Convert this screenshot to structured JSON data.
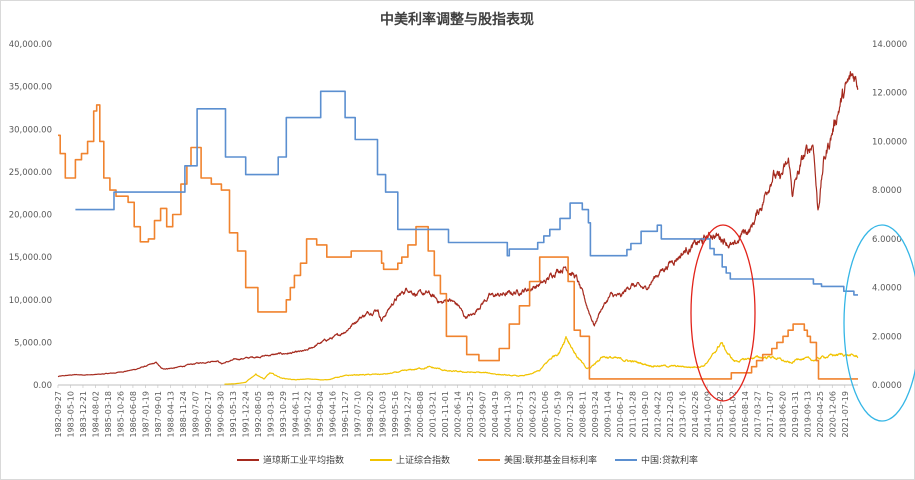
{
  "chart_data": {
    "type": "line",
    "title": "中美利率调整与股指表现",
    "y_left": {
      "min": 0,
      "max": 40000,
      "step": 5000,
      "ticks": [
        "0.00",
        "5,000.00",
        "10,000.00",
        "15,000.00",
        "20,000.00",
        "25,000.00",
        "30,000.00",
        "35,000.00",
        "40,000.00"
      ]
    },
    "y_right": {
      "min": 0,
      "max": 14,
      "step": 2,
      "ticks": [
        "0.0000",
        "2.0000",
        "4.0000",
        "6.0000",
        "8.0000",
        "10.0000",
        "12.0000",
        "14.0000"
      ]
    },
    "x_range": [
      1982.74,
      2022.2
    ],
    "x_ticks": [
      "1982-09-27",
      "1983-05-10",
      "1983-12-21",
      "1984-08-02",
      "1985-03-18",
      "1985-10-26",
      "1986-06-08",
      "1987-01-19",
      "1987-09-01",
      "1988-04-13",
      "1988-11-24",
      "1989-07-07",
      "1990-02-17",
      "1990-09-30",
      "1991-05-13",
      "1991-12-24",
      "1992-08-05",
      "1993-03-18",
      "1993-10-29",
      "1994-06-11",
      "1995-01-22",
      "1995-09-04",
      "1996-04-16",
      "1996-11-27",
      "1997-07-10",
      "1998-02-20",
      "1998-10-03",
      "1999-05-16",
      "1999-12-27",
      "2000-08-08",
      "2001-03-21",
      "2001-11-01",
      "2002-06-14",
      "2003-01-25",
      "2003-09-07",
      "2004-04-19",
      "2004-11-30",
      "2005-07-13",
      "2006-02-23",
      "2006-10-06",
      "2007-05-19",
      "2007-12-30",
      "2008-08-11",
      "2009-03-24",
      "2009-11-04",
      "2010-06-17",
      "2011-01-28",
      "2011-09-10",
      "2012-04-22",
      "2012-12-03",
      "2013-07-16",
      "2014-02-26",
      "2014-10-09",
      "2015-05-22",
      "2016-01-02",
      "2016-08-14",
      "2017-03-27",
      "2017-11-07",
      "2018-06-20",
      "2019-01-31",
      "2019-09-13",
      "2020-04-25",
      "2020-12-06",
      "2021-07-19"
    ],
    "series": [
      {
        "name": "道琼斯工业平均指数",
        "axis": "left",
        "color": "#a52a1e",
        "noise": 0.018,
        "x": [
          1982.74,
          1983.5,
          1984.5,
          1985.5,
          1986.5,
          1987.6,
          1987.85,
          1988.5,
          1989.5,
          1990.6,
          1990.8,
          1991.5,
          1992.5,
          1993.5,
          1994.5,
          1995.0,
          1995.5,
          1996.0,
          1996.5,
          1997.0,
          1997.6,
          1998.5,
          1998.7,
          1999.3,
          2000.0,
          2000.5,
          2001.0,
          2001.7,
          2002.0,
          2002.5,
          2002.8,
          2003.2,
          2003.6,
          2004.0,
          2005.0,
          2006.0,
          2006.8,
          2007.3,
          2007.8,
          2008.3,
          2008.9,
          2009.2,
          2009.5,
          2010.0,
          2010.5,
          2011.0,
          2011.7,
          2012.3,
          2013.0,
          2013.8,
          2014.5,
          2015.0,
          2015.6,
          2016.1,
          2016.5,
          2016.9,
          2017.5,
          2018.0,
          2018.3,
          2018.8,
          2018.95,
          2019.5,
          2020.0,
          2020.22,
          2020.5,
          2020.9,
          2021.3,
          2021.8,
          2022.0,
          2022.2
        ],
        "y": [
          1000,
          1200,
          1200,
          1400,
          1800,
          2600,
          1900,
          2000,
          2500,
          2900,
          2500,
          3000,
          3300,
          3600,
          3800,
          4000,
          4700,
          5300,
          5700,
          6500,
          7900,
          9000,
          7600,
          9800,
          11400,
          10600,
          10700,
          9600,
          10100,
          9300,
          8000,
          8200,
          9500,
          10400,
          10700,
          11300,
          12100,
          13500,
          13900,
          12600,
          8800,
          7000,
          8800,
          10500,
          10300,
          11800,
          11200,
          13000,
          14500,
          16000,
          16800,
          17700,
          17200,
          16000,
          17800,
          18300,
          21500,
          25000,
          24000,
          26000,
          22500,
          26500,
          28500,
          20500,
          26000,
          29500,
          33000,
          35500,
          36200,
          35500
        ]
      },
      {
        "name": "上证综合指数",
        "axis": "left",
        "color": "#f1c300",
        "noise": 0.03,
        "x": [
          1990.95,
          1991.5,
          1992.0,
          1992.5,
          1992.9,
          1993.2,
          1993.8,
          1994.5,
          1995.0,
          1995.5,
          1996.0,
          1996.5,
          1997.0,
          1997.5,
          1998.0,
          1999.0,
          1999.5,
          2000.0,
          2001.0,
          2001.5,
          2002.0,
          2003.0,
          2004.0,
          2005.0,
          2005.5,
          2006.0,
          2006.5,
          2007.0,
          2007.5,
          2007.8,
          2008.3,
          2008.8,
          2009.0,
          2009.6,
          2010.0,
          2011.0,
          2012.0,
          2013.0,
          2014.0,
          2014.6,
          2015.0,
          2015.45,
          2015.8,
          2016.1,
          2016.5,
          2017.0,
          2018.0,
          2018.9,
          2019.3,
          2020.0,
          2020.5,
          2021.0,
          2021.5,
          2022.0,
          2022.2
        ],
        "y": [
          100,
          150,
          300,
          1300,
          700,
          1400,
          800,
          600,
          700,
          650,
          600,
          900,
          1100,
          1200,
          1200,
          1300,
          1500,
          1700,
          2100,
          1900,
          1600,
          1500,
          1400,
          1100,
          1050,
          1200,
          1700,
          3000,
          4000,
          5800,
          3500,
          1900,
          2000,
          3400,
          3200,
          2800,
          2300,
          2200,
          2100,
          2300,
          3300,
          5000,
          3600,
          2800,
          2900,
          3200,
          3300,
          2500,
          3200,
          2900,
          3300,
          3500,
          3600,
          3400,
          3300
        ]
      },
      {
        "name": "美国:联邦基金目标利率",
        "axis": "right",
        "color": "#f0832e",
        "x": [
          1982.74,
          1982.85,
          1983.1,
          1983.3,
          1983.6,
          1983.9,
          1984.2,
          1984.5,
          1984.65,
          1984.8,
          1985.0,
          1985.3,
          1985.6,
          1985.9,
          1986.2,
          1986.5,
          1986.8,
          1987.2,
          1987.5,
          1987.8,
          1988.1,
          1988.4,
          1988.8,
          1989.1,
          1989.3,
          1989.8,
          1990.3,
          1990.8,
          1991.2,
          1991.6,
          1992.0,
          1992.6,
          1993.5,
          1994.0,
          1994.2,
          1994.4,
          1994.7,
          1995.0,
          1995.5,
          1996.0,
          1997.2,
          1998.7,
          1998.8,
          1998.9,
          1999.5,
          1999.7,
          2000.0,
          2000.4,
          2001.0,
          2001.3,
          2001.6,
          2001.9,
          2002.9,
          2003.5,
          2004.5,
          2005.0,
          2005.5,
          2006.0,
          2006.5,
          2007.6,
          2007.9,
          2008.2,
          2008.5,
          2008.95,
          2015.95,
          2016.95,
          2017.2,
          2017.5,
          2017.95,
          2018.2,
          2018.5,
          2018.75,
          2019.0,
          2019.55,
          2019.7,
          2019.85,
          2020.15,
          2020.25,
          2022.2
        ],
        "y": [
          10.25,
          9.5,
          8.5,
          8.5,
          9.25,
          9.5,
          10.0,
          11.25,
          11.5,
          10.0,
          8.5,
          8.0,
          7.75,
          7.75,
          7.5,
          6.5,
          5.88,
          6.0,
          6.75,
          7.25,
          6.5,
          7.0,
          8.25,
          9.0,
          9.75,
          8.5,
          8.25,
          8.0,
          6.25,
          5.5,
          4.0,
          3.0,
          3.0,
          3.5,
          4.0,
          4.5,
          5.0,
          6.0,
          5.75,
          5.25,
          5.5,
          5.0,
          4.75,
          4.75,
          5.0,
          5.25,
          5.75,
          6.5,
          5.5,
          4.5,
          3.75,
          2.0,
          1.25,
          1.0,
          1.5,
          2.5,
          3.25,
          4.25,
          5.25,
          5.25,
          4.25,
          2.25,
          2.0,
          0.25,
          0.5,
          0.75,
          1.0,
          1.25,
          1.5,
          1.75,
          2.0,
          2.25,
          2.5,
          2.25,
          2.0,
          1.75,
          1.0,
          0.25,
          0.25
        ]
      },
      {
        "name": "中国:贷款利率",
        "axis": "right",
        "color": "#5b8fd0",
        "x": [
          1983.6,
          1985.0,
          1985.5,
          1986.2,
          1987.0,
          1988.5,
          1989.0,
          1989.6,
          1990.4,
          1991.0,
          1991.4,
          1992.0,
          1993.4,
          1993.6,
          1994.0,
          1994.5,
          1995.0,
          1995.7,
          1996.4,
          1996.9,
          1997.4,
          1998.0,
          1998.5,
          1998.9,
          1999.5,
          2002.0,
          2004.9,
          2005.0,
          2006.4,
          2006.7,
          2007.0,
          2007.5,
          2008.0,
          2008.6,
          2008.9,
          2009.0,
          2010.8,
          2011.0,
          2011.5,
          2012.3,
          2012.5,
          2014.9,
          2015.1,
          2015.5,
          2015.7,
          2015.9,
          2019.8,
          2020.0,
          2020.4,
          2021.5,
          2022.0
        ],
        "y": [
          7.2,
          7.2,
          7.92,
          7.92,
          7.92,
          7.92,
          9.0,
          11.34,
          11.34,
          9.36,
          9.36,
          8.64,
          8.64,
          9.36,
          10.98,
          10.98,
          10.98,
          12.06,
          12.06,
          10.98,
          10.08,
          10.08,
          8.64,
          7.92,
          6.39,
          5.85,
          5.31,
          5.58,
          5.85,
          6.12,
          6.39,
          6.84,
          7.47,
          7.2,
          6.66,
          5.31,
          5.56,
          5.81,
          6.31,
          6.56,
          6.0,
          5.6,
          5.35,
          4.85,
          4.6,
          4.35,
          4.35,
          4.15,
          4.05,
          3.85,
          3.7
        ]
      }
    ],
    "legend_position": "bottom",
    "grid": false
  }
}
